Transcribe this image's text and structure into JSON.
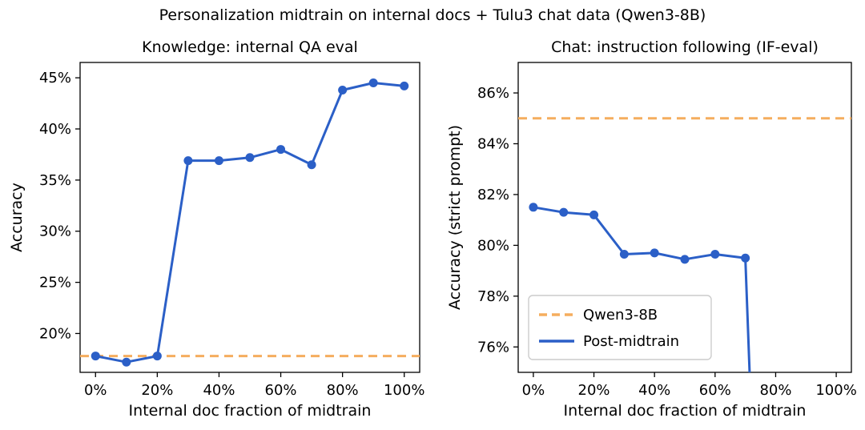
{
  "figure": {
    "suptitle": "Personalization midtrain on internal docs + Tulu3 chat data (Qwen3-8B)"
  },
  "colors": {
    "series_line": "#2b5fc7",
    "baseline_line": "#f5ad5e",
    "spine": "#000000",
    "legend_border": "#cccccc"
  },
  "chart_data": [
    {
      "type": "line",
      "title": "Knowledge: internal QA eval",
      "xlabel": "Internal doc fraction of midtrain",
      "ylabel": "Accuracy",
      "x": [
        0,
        10,
        20,
        30,
        40,
        50,
        60,
        70,
        80,
        90,
        100
      ],
      "series": [
        {
          "name": "Post-midtrain",
          "values": [
            17.8,
            17.2,
            17.8,
            36.9,
            36.9,
            37.2,
            38.0,
            36.5,
            43.8,
            44.5,
            44.2
          ]
        }
      ],
      "baseline": {
        "name": "Qwen3-8B",
        "value": 17.8
      },
      "xticks": [
        0,
        20,
        40,
        60,
        80,
        100
      ],
      "yticks": [
        20,
        25,
        30,
        35,
        40,
        45
      ],
      "xlim": [
        -5,
        105
      ],
      "ylim": [
        16.2,
        46.5
      ],
      "tick_suffix": "%",
      "grid": false
    },
    {
      "type": "line",
      "title": "Chat: instruction following (IF-eval)",
      "xlabel": "Internal doc fraction of midtrain",
      "ylabel": "Accuracy (strict prompt)",
      "x": [
        0,
        10,
        20,
        30,
        40,
        50,
        60,
        70
      ],
      "series": [
        {
          "name": "Post-midtrain",
          "values": [
            81.5,
            81.3,
            81.2,
            79.65,
            79.7,
            79.45,
            79.65,
            79.5
          ]
        }
      ],
      "baseline": {
        "name": "Qwen3-8B",
        "value": 85.0
      },
      "line_exits_bottom_at_x": 71.5,
      "xticks": [
        0,
        20,
        40,
        60,
        80,
        100
      ],
      "yticks": [
        76,
        78,
        80,
        82,
        84,
        86
      ],
      "xlim": [
        -5,
        105
      ],
      "ylim": [
        75.0,
        87.2
      ],
      "tick_suffix": "%",
      "grid": false,
      "legend": {
        "position": "center-left",
        "entries": [
          {
            "label": "Qwen3-8B",
            "style": "dashed"
          },
          {
            "label": "Post-midtrain",
            "style": "solid"
          }
        ]
      }
    }
  ]
}
